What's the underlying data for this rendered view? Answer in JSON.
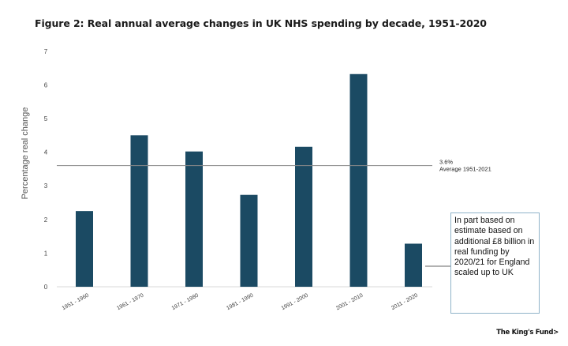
{
  "title": "Figure 2: Real annual average changes in UK NHS spending by decade, 1951-2020",
  "chart_data": {
    "type": "bar",
    "categories": [
      "1951 - 1960",
      "1961 - 1970",
      "1971 - 1980",
      "1981 - 1990",
      "1991 - 2000",
      "2001 - 2010",
      "2011 - 2020"
    ],
    "values": [
      2.25,
      4.5,
      4.02,
      2.73,
      4.16,
      6.32,
      1.28
    ],
    "ylabel": "Percentage real change",
    "xlabel": "",
    "ylim": [
      0,
      7
    ],
    "yticks": [
      0,
      1,
      2,
      3,
      4,
      5,
      6,
      7
    ],
    "grid": false,
    "bar_color": "#1b4a63",
    "reference_line": {
      "value": 3.6,
      "value_label": "3.6%",
      "label": "Average 1951-2021",
      "color": "#888888"
    }
  },
  "annotation": "In part based on estimate based on additional £8 billion in real funding by 2020/21 for England scaled up to UK",
  "brand": "The King's Fund>"
}
